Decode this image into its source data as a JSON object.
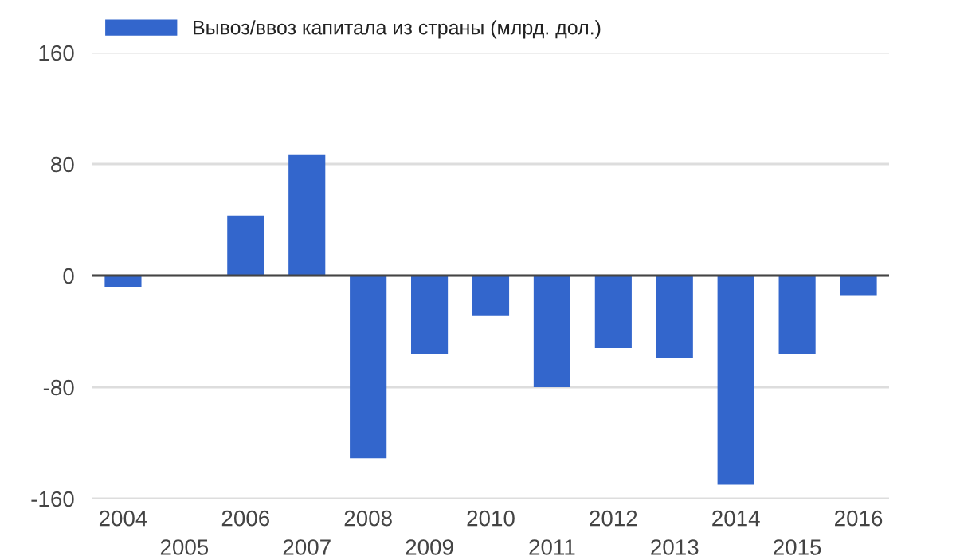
{
  "chart_data": {
    "type": "bar",
    "categories": [
      "2004",
      "2005",
      "2006",
      "2007",
      "2008",
      "2009",
      "2010",
      "2011",
      "2012",
      "2013",
      "2014",
      "2015",
      "2016"
    ],
    "series": [
      {
        "name": "Вывоз/ввоз капитала из страны (млрд. дол.)",
        "color": "#3366cc",
        "values": [
          -8,
          0,
          43,
          87,
          -131,
          -56,
          -29,
          -80,
          -52,
          -59,
          -150,
          -56,
          -14
        ]
      }
    ],
    "ylim": [
      -160,
      160
    ],
    "yticks": [
      -160,
      -80,
      0,
      80,
      160
    ],
    "grid": "y",
    "legend": "top"
  }
}
